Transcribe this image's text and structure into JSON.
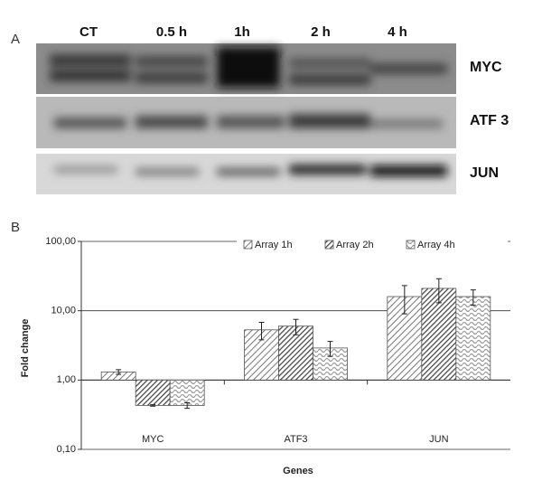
{
  "panel_a": {
    "label": "A",
    "lanes": [
      "CT",
      "0.5 h",
      "1h",
      "2 h",
      "4 h"
    ],
    "rows": [
      "MYC",
      "ATF 3",
      "JUN"
    ]
  },
  "chart_data": {
    "type": "bar",
    "panel_label": "B",
    "x_label": "Genes",
    "y_label": "Fold change",
    "categories": [
      "MYC",
      "ATF3",
      "JUN"
    ],
    "series": [
      {
        "name": "Array 1h",
        "color": "#777777",
        "values": [
          1.31,
          5.3,
          16
        ],
        "errors": [
          0.1,
          1.5,
          7
        ]
      },
      {
        "name": "Array 2h",
        "color": "#444444",
        "values": [
          0.43,
          6.0,
          21
        ],
        "errors": [
          0.01,
          1.5,
          8
        ]
      },
      {
        "name": "Array 4h",
        "color": "#999999",
        "values": [
          0.43,
          2.9,
          16
        ],
        "errors": [
          0.04,
          0.7,
          4
        ]
      }
    ],
    "log_scale": true,
    "ylim": [
      0.1,
      100
    ],
    "yticks": [
      {
        "value": 0.1,
        "label": "0,10"
      },
      {
        "value": 1,
        "label": "1,00"
      },
      {
        "value": 10,
        "label": "10,00"
      },
      {
        "value": 100,
        "label": "100,00"
      }
    ],
    "grid": true
  }
}
